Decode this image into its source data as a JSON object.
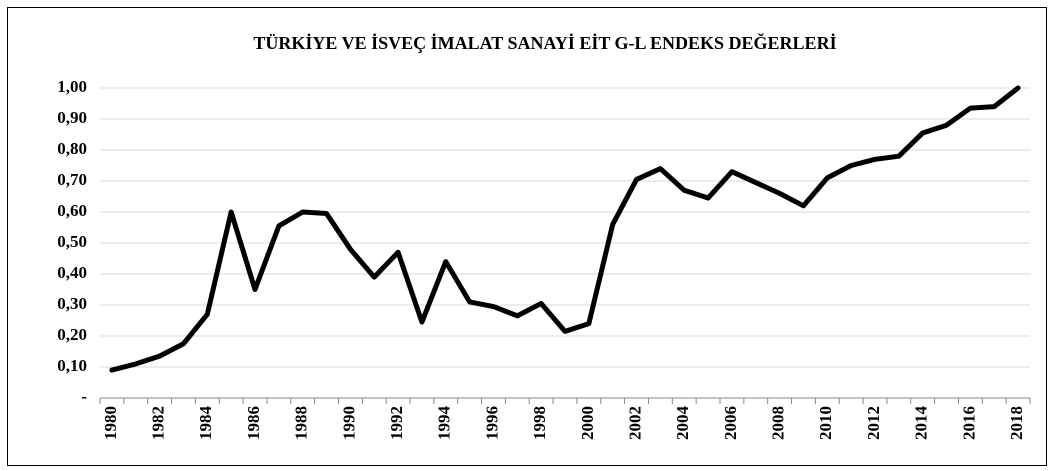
{
  "chart_data": {
    "type": "line",
    "title": "TÜRKİYE VE İSVEÇ İMALAT SANAYİ EİT G-L ENDEKS DEĞERLERİ",
    "categories": [
      "1980",
      null,
      "1982",
      null,
      "1984",
      null,
      "1986",
      null,
      "1988",
      null,
      "1990",
      null,
      "1992",
      null,
      "1994",
      null,
      "1996",
      null,
      "1998",
      null,
      "2000",
      null,
      "2002",
      null,
      "2004",
      null,
      "2006",
      null,
      "2008",
      null,
      "2010",
      null,
      "2012",
      null,
      "2014",
      null,
      "2016",
      null,
      "2018"
    ],
    "values": [
      0.09,
      0.11,
      0.135,
      0.175,
      0.27,
      0.6,
      0.35,
      0.555,
      0.6,
      0.595,
      0.48,
      0.39,
      0.47,
      0.245,
      0.44,
      0.31,
      0.295,
      0.265,
      0.305,
      0.215,
      0.24,
      0.56,
      0.705,
      0.74,
      0.67,
      0.645,
      0.73,
      0.695,
      0.66,
      0.62,
      0.71,
      0.75,
      0.77,
      0.78,
      0.855,
      0.88,
      0.935,
      0.94,
      1.0
    ],
    "color": "#000000",
    "ylim": [
      0,
      1
    ],
    "yticks": [
      {
        "value": 0,
        "label": "-"
      },
      {
        "value": 0.1,
        "label": "0,10"
      },
      {
        "value": 0.2,
        "label": "0,20"
      },
      {
        "value": 0.3,
        "label": "0,30"
      },
      {
        "value": 0.4,
        "label": "0,40"
      },
      {
        "value": 0.5,
        "label": "0,50"
      },
      {
        "value": 0.6,
        "label": "0,60"
      },
      {
        "value": 0.7,
        "label": "0,70"
      },
      {
        "value": 0.8,
        "label": "0,80"
      },
      {
        "value": 0.9,
        "label": "0,90"
      },
      {
        "value": 1,
        "label": "1,00"
      }
    ],
    "grid": true
  }
}
